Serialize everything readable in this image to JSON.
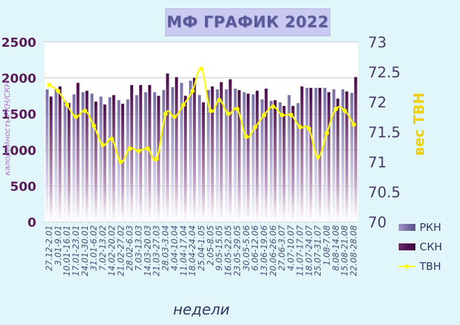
{
  "title": "МФ ГРАФИК 2022",
  "chart_data": {
    "type": "bar",
    "title": "МФ ГРАФИК 2022",
    "xlabel": "недели",
    "ylabel": "калорийность РКН/СКН",
    "y2label": "вес ТВН",
    "ylim": [
      0,
      2500
    ],
    "y2lim": [
      70,
      73
    ],
    "yticks": [
      0,
      500,
      1000,
      1500,
      2000,
      2500
    ],
    "y2ticks": [
      "70",
      "70.5",
      "71",
      "71.5",
      "72",
      "72.5",
      "73"
    ],
    "grid": true,
    "legend_position": "bottom-right",
    "categories": [
      "27.12-2.01",
      "3.01-9.01",
      "10.01-16.01",
      "17.01-23.01",
      "24.01-30.01",
      "31.01-6.02",
      "7.02-13.02",
      "14.02-20.02",
      "21.02-27.02",
      "28.02-6.03",
      "7.03-13.03",
      "14.03-20.03",
      "21.03-27.03",
      "28.03-3.04",
      "4.04-10.04",
      "11.04-17.04",
      "18.04-24.04",
      "25.04-1.05",
      "2.05-8.05",
      "9.05-15.05",
      "16.05-22.05",
      "23.05-29.05",
      "30.05-5.06",
      "6.06-12.06",
      "13.06-19.06",
      "20.06-26.06",
      "27.06-3.07",
      "4.07-10.07",
      "11.07-17.07",
      "18.07-24.07",
      "25.07-31.07",
      "1.08-7.08",
      "8.08-14.08",
      "15.08-21.08",
      "22.08-28.08"
    ],
    "series": [
      {
        "name": "РКН",
        "type": "bar",
        "values": [
          1840,
          1850,
          1680,
          1770,
          1800,
          1780,
          1740,
          1730,
          1690,
          1700,
          1760,
          1800,
          1800,
          1830,
          1870,
          1930,
          1960,
          1760,
          1830,
          1840,
          1840,
          1850,
          1800,
          1770,
          1700,
          1680,
          1660,
          1760,
          1650,
          1860,
          1860,
          1860,
          1840,
          1840,
          1790
        ]
      },
      {
        "name": "СКН",
        "type": "bar",
        "values": [
          1740,
          1880,
          1650,
          1930,
          1820,
          1670,
          1630,
          1760,
          1640,
          1900,
          1900,
          1900,
          1750,
          2060,
          2010,
          1750,
          2000,
          1660,
          1880,
          1940,
          1980,
          1830,
          1780,
          1820,
          1850,
          1690,
          1610,
          1610,
          1880,
          1860,
          1860,
          1800,
          1710,
          1810,
          2010
        ]
      },
      {
        "name": "ТВН",
        "type": "line",
        "axis": "right",
        "values": [
          72.28,
          72.18,
          71.95,
          71.75,
          71.85,
          71.6,
          71.28,
          71.38,
          71.0,
          71.22,
          71.18,
          71.22,
          71.05,
          71.8,
          71.75,
          71.95,
          72.18,
          72.55,
          71.85,
          72.03,
          71.8,
          71.88,
          71.42,
          71.58,
          71.78,
          71.92,
          71.78,
          71.78,
          71.58,
          71.55,
          71.08,
          71.48,
          71.88,
          71.85,
          71.62
        ]
      }
    ]
  },
  "legend": [
    {
      "label": "РКН",
      "color": "#7a6fa8"
    },
    {
      "label": "СКН",
      "color": "#5a1a5a"
    },
    {
      "label": "ТВН",
      "color": "#ffff00"
    }
  ]
}
